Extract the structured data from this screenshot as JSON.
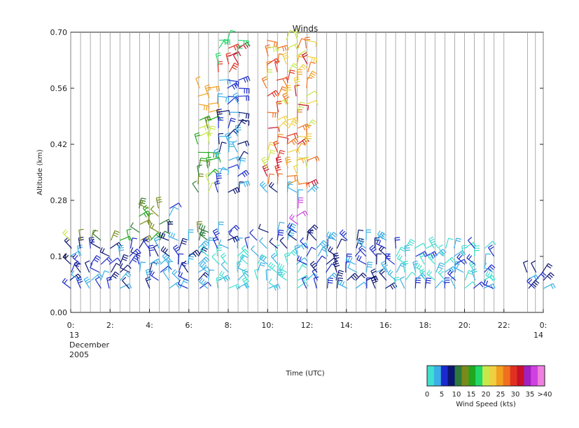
{
  "chart_data": {
    "type": "wind-barb time-height",
    "title": "Winds",
    "xlabel": "Time (UTC)",
    "ylabel": "Altitude (km)",
    "ylim": [
      0,
      0.7
    ],
    "xlim": [
      0,
      24
    ],
    "y_ticks": [
      "0.00",
      "0.14",
      "0.28",
      "0.42",
      "0.56",
      "0.70"
    ],
    "x_ticks": [
      "0:",
      "2:",
      "4:",
      "6:",
      "8:",
      "10:",
      "12:",
      "14:",
      "16:",
      "18:",
      "20:",
      "22:",
      "0:"
    ],
    "x_sub_labels": {
      "start_day": "13",
      "end_day": "14",
      "month": "December",
      "year": "2005"
    },
    "profile_hours": [
      0,
      0.5,
      1,
      1.5,
      2,
      2.5,
      3,
      3.5,
      4,
      4.5,
      5,
      5.5,
      6,
      6.5,
      7,
      7.5,
      8,
      8.5,
      9,
      9.5,
      10,
      10.5,
      11,
      11.5,
      12,
      12.5,
      13,
      13.5,
      14,
      14.5,
      15,
      15.5,
      16,
      16.5,
      17,
      17.5,
      18,
      18.5,
      19,
      19.5,
      20,
      20.5,
      21,
      21.5,
      22,
      23.2,
      23.6,
      24
    ],
    "colorbar": {
      "label": "Wind Speed (kts)",
      "tick_labels": [
        "0",
        "5",
        "10",
        "15",
        "20",
        "25",
        "30",
        "35",
        ">40"
      ],
      "colors": [
        "#40e0d0",
        "#3ab0e6",
        "#1a2acc",
        "#0b1470",
        "#2c7a3a",
        "#7a8a1a",
        "#1fa81f",
        "#22d86a",
        "#c8e84a",
        "#f0d040",
        "#f2a020",
        "#f07020",
        "#e03020",
        "#c8102a",
        "#a020c0",
        "#d040e0",
        "#f080e0"
      ]
    }
  }
}
